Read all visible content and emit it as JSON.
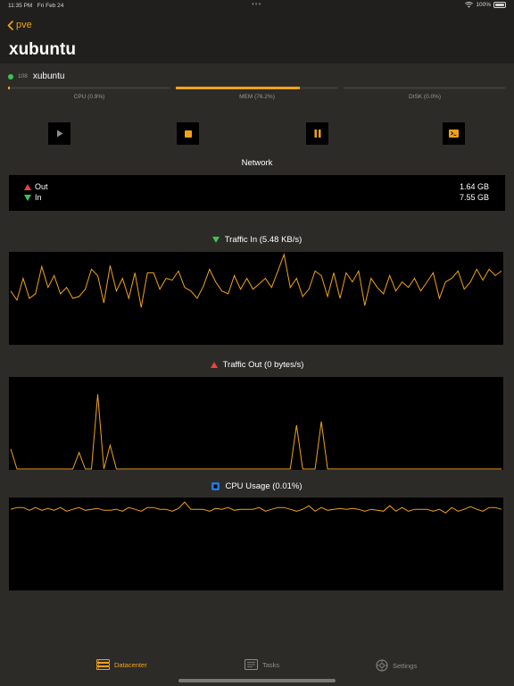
{
  "status_bar": {
    "time": "11:35 PM",
    "date": "Fri Feb 24",
    "battery": "100%"
  },
  "nav": {
    "back_label": "pve",
    "title": "xubuntu"
  },
  "vm": {
    "id": "108",
    "name": "xubuntu",
    "status_color": "#3ec154"
  },
  "meters": [
    {
      "label": "CPU (0.9%)",
      "fraction": 0.009
    },
    {
      "label": "MEM (76.2%)",
      "fraction": 0.762
    },
    {
      "label": "DISK (0.0%)",
      "fraction": 0.0
    }
  ],
  "actions": [
    {
      "name": "start-button",
      "icon": "play-icon"
    },
    {
      "name": "stop-button",
      "icon": "stop-icon"
    },
    {
      "name": "pause-button",
      "icon": "pause-icon"
    },
    {
      "name": "console-button",
      "icon": "console-icon"
    }
  ],
  "network": {
    "title": "Network",
    "out_label": "Out",
    "out_value": "1.64 GB",
    "in_label": "In",
    "in_value": "7.55 GB"
  },
  "graphs": {
    "traffic_in": {
      "title": "Traffic In (5.48 KB/s)",
      "values": [
        0.58,
        0.48,
        0.72,
        0.5,
        0.55,
        0.85,
        0.62,
        0.75,
        0.55,
        0.62,
        0.5,
        0.52,
        0.6,
        0.82,
        0.75,
        0.45,
        0.86,
        0.58,
        0.72,
        0.5,
        0.78,
        0.4,
        0.78,
        0.78,
        0.6,
        0.72,
        0.7,
        0.8,
        0.62,
        0.58,
        0.5,
        0.63,
        0.82,
        0.68,
        0.58,
        0.55,
        0.75,
        0.6,
        0.72,
        0.6,
        0.66,
        0.72,
        0.62,
        0.8,
        0.98,
        0.62,
        0.72,
        0.52,
        0.6,
        0.8,
        0.75,
        0.52,
        0.78,
        0.5,
        0.78,
        0.68,
        0.8,
        0.42,
        0.72,
        0.62,
        0.55,
        0.75,
        0.58,
        0.68,
        0.62,
        0.72,
        0.58,
        0.68,
        0.78,
        0.5,
        0.68,
        0.72,
        0.8,
        0.6,
        0.68,
        0.82,
        0.7,
        0.82,
        0.75,
        0.8
      ],
      "max": 1.0
    },
    "traffic_out": {
      "title": "Traffic Out (0 bytes/s)",
      "values": [
        0.22,
        0,
        0,
        0,
        0,
        0,
        0,
        0,
        0,
        0,
        0,
        0.18,
        0,
        0,
        0.82,
        0,
        0.26,
        0,
        0,
        0,
        0,
        0,
        0,
        0,
        0,
        0,
        0,
        0,
        0,
        0,
        0,
        0,
        0,
        0,
        0,
        0,
        0,
        0,
        0,
        0,
        0,
        0,
        0,
        0,
        0,
        0,
        0.48,
        0,
        0,
        0,
        0.52,
        0,
        0,
        0,
        0,
        0,
        0,
        0,
        0,
        0,
        0,
        0,
        0,
        0,
        0,
        0,
        0,
        0,
        0,
        0,
        0,
        0,
        0,
        0,
        0,
        0,
        0,
        0,
        0,
        0
      ],
      "max": 1.0
    },
    "cpu_usage": {
      "title": "CPU Usage (0.01%)",
      "values": [
        0.88,
        0.9,
        0.9,
        0.87,
        0.9,
        0.87,
        0.89,
        0.87,
        0.9,
        0.86,
        0.88,
        0.9,
        0.87,
        0.88,
        0.89,
        0.87,
        0.87,
        0.88,
        0.86,
        0.9,
        0.88,
        0.86,
        0.9,
        0.9,
        0.88,
        0.88,
        0.86,
        0.89,
        0.96,
        0.88,
        0.88,
        0.88,
        0.86,
        0.89,
        0.88,
        0.9,
        0.87,
        0.88,
        0.88,
        0.88,
        0.9,
        0.86,
        0.88,
        0.9,
        0.9,
        0.88,
        0.86,
        0.88,
        0.92,
        0.86,
        0.9,
        0.87,
        0.88,
        0.89,
        0.88,
        0.89,
        0.88,
        0.86,
        0.88,
        0.87,
        0.86,
        0.92,
        0.86,
        0.9,
        0.86,
        0.88,
        0.88,
        0.88,
        0.86,
        0.88,
        0.84,
        0.9,
        0.86,
        0.88,
        0.91,
        0.88,
        0.86,
        0.9,
        0.9,
        0.88
      ],
      "max": 1.0
    }
  },
  "tabs": [
    {
      "label": "Datacenter",
      "icon": "server-icon",
      "active": true
    },
    {
      "label": "Tasks",
      "icon": "tasks-icon",
      "active": false
    },
    {
      "label": "Settings",
      "icon": "gear-icon",
      "active": false
    }
  ],
  "colors": {
    "accent": "#f0a21b",
    "up": "#e8453c",
    "down": "#3ec154",
    "cpu": "#1f7ae0"
  }
}
